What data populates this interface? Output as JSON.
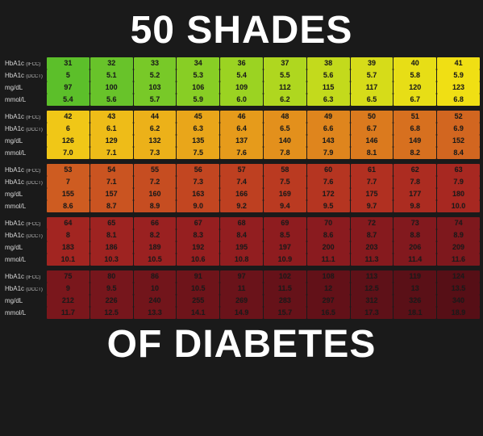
{
  "title_top": "50 Shades",
  "title_bottom": "of Diabetes",
  "row_labels": [
    {
      "main": "HbA1c",
      "sub": "(IFCC)"
    },
    {
      "main": "HbA1c",
      "sub": "(DCCT)"
    },
    {
      "main": "mg/dL",
      "sub": ""
    },
    {
      "main": "mmol/L",
      "sub": ""
    }
  ],
  "text_color": "#1a1a1a",
  "label_color": "#d8d8d8",
  "background_color": "#1a1a1a",
  "groups": [
    {
      "colors": [
        "#5cbf2a",
        "#68c32a",
        "#78c928",
        "#88ce25",
        "#9bd322",
        "#afd71f",
        "#c3da1c",
        "#d6dc19",
        "#e7de16",
        "#f0df14"
      ],
      "rows": [
        [
          "31",
          "32",
          "33",
          "34",
          "36",
          "37",
          "38",
          "39",
          "40",
          "41"
        ],
        [
          "5",
          "5.1",
          "5.2",
          "5.3",
          "5.4",
          "5.5",
          "5.6",
          "5.7",
          "5.8",
          "5.9"
        ],
        [
          "97",
          "100",
          "103",
          "106",
          "109",
          "112",
          "115",
          "117",
          "120",
          "123"
        ],
        [
          "5.4",
          "5.6",
          "5.7",
          "5.9",
          "6.0",
          "6.2",
          "6.3",
          "6.5",
          "6.7",
          "6.8"
        ]
      ]
    },
    {
      "colors": [
        "#f0c717",
        "#eebc18",
        "#ecb119",
        "#e9a61a",
        "#e69b1b",
        "#e3901c",
        "#df851d",
        "#db7a1e",
        "#d7701f",
        "#d26620"
      ],
      "rows": [
        [
          "42",
          "43",
          "44",
          "45",
          "46",
          "48",
          "49",
          "50",
          "51",
          "52"
        ],
        [
          "6",
          "6.1",
          "6.2",
          "6.3",
          "6.4",
          "6.5",
          "6.6",
          "6.7",
          "6.8",
          "6.9"
        ],
        [
          "126",
          "129",
          "132",
          "135",
          "137",
          "140",
          "143",
          "146",
          "149",
          "152"
        ],
        [
          "7.0",
          "7.1",
          "7.3",
          "7.5",
          "7.6",
          "7.8",
          "7.9",
          "8.1",
          "8.2",
          "8.4"
        ]
      ]
    },
    {
      "colors": [
        "#ce5c21",
        "#ca5421",
        "#c64d21",
        "#c24621",
        "#be4021",
        "#ba3a21",
        "#b53521",
        "#b13021",
        "#ac2c21",
        "#a72821"
      ],
      "rows": [
        [
          "53",
          "54",
          "55",
          "56",
          "57",
          "58",
          "60",
          "61",
          "62",
          "63"
        ],
        [
          "7",
          "7.1",
          "7.2",
          "7.3",
          "7.4",
          "7.5",
          "7.6",
          "7.7",
          "7.8",
          "7.9"
        ],
        [
          "155",
          "157",
          "160",
          "163",
          "166",
          "169",
          "172",
          "175",
          "177",
          "180"
        ],
        [
          "8.6",
          "8.7",
          "8.9",
          "9.0",
          "9.2",
          "9.4",
          "9.5",
          "9.7",
          "9.8",
          "10.0"
        ]
      ]
    },
    {
      "colors": [
        "#a22521",
        "#9e2321",
        "#9a2121",
        "#961f20",
        "#921e20",
        "#8e1c1f",
        "#8a1b1f",
        "#861a1e",
        "#82191e",
        "#7e181d"
      ],
      "rows": [
        [
          "64",
          "65",
          "66",
          "67",
          "68",
          "69",
          "70",
          "72",
          "73",
          "74"
        ],
        [
          "8",
          "8.1",
          "8.2",
          "8.3",
          "8.4",
          "8.5",
          "8.6",
          "8.7",
          "8.8",
          "8.9"
        ],
        [
          "183",
          "186",
          "189",
          "192",
          "195",
          "197",
          "200",
          "203",
          "206",
          "209"
        ],
        [
          "10.1",
          "10.3",
          "10.5",
          "10.6",
          "10.8",
          "10.9",
          "11.1",
          "11.3",
          "11.4",
          "11.6"
        ]
      ]
    },
    {
      "colors": [
        "#7a171c",
        "#76161c",
        "#72151b",
        "#6e141a",
        "#6a131a",
        "#661219",
        "#621118",
        "#5e1118",
        "#5a1017",
        "#560f16"
      ],
      "rows": [
        [
          "75",
          "80",
          "86",
          "91",
          "97",
          "102",
          "108",
          "113",
          "119",
          "124"
        ],
        [
          "9",
          "9.5",
          "10",
          "10.5",
          "11",
          "11.5",
          "12",
          "12.5",
          "13",
          "13.5"
        ],
        [
          "212",
          "226",
          "240",
          "255",
          "269",
          "283",
          "297",
          "312",
          "326",
          "340"
        ],
        [
          "11.7",
          "12.5",
          "13.3",
          "14.1",
          "14.9",
          "15.7",
          "16.5",
          "17.3",
          "18.1",
          "18.9"
        ]
      ]
    }
  ]
}
